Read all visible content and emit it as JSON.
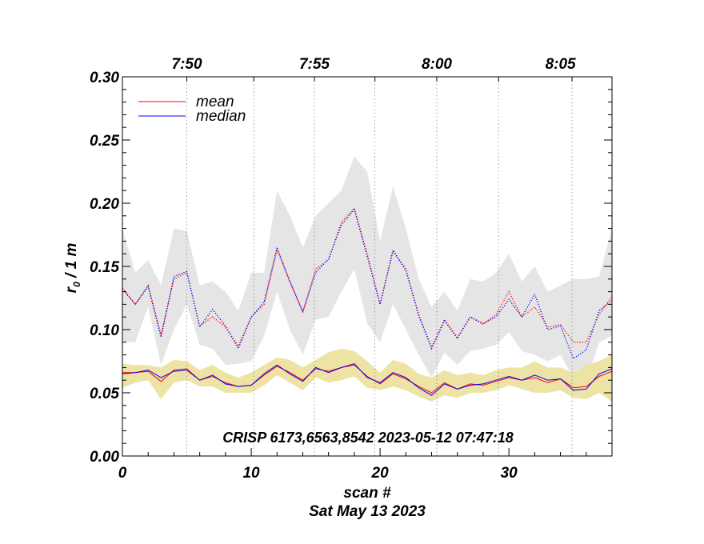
{
  "chart_data": {
    "type": "line",
    "title": "",
    "xlabel": "scan #",
    "date_label": "Sat May 13 2023",
    "ylabel_main": "r",
    "ylabel_sub": "0",
    "ylabel_rest": " / 1 m",
    "annotation": "CRISP 6173,6563,8542 2023-05-12 07:47:18",
    "xlim": [
      0,
      38
    ],
    "ylim": [
      0,
      0.3
    ],
    "x_ticks": [
      0,
      10,
      20,
      30
    ],
    "x_tick_labels": [
      "0",
      "10",
      "20",
      "30"
    ],
    "y_ticks": [
      0,
      0.05,
      0.1,
      0.15,
      0.2,
      0.25,
      0.3
    ],
    "y_tick_labels": [
      "0.00",
      "0.05",
      "0.10",
      "0.15",
      "0.20",
      "0.25",
      "0.30"
    ],
    "top_axis": {
      "positions": [
        5,
        10.2,
        14.9,
        19.6,
        24.4,
        29.2,
        34.9
      ],
      "labels": [
        {
          "x": 5,
          "text": "7:50"
        },
        {
          "x": 14.9,
          "text": "7:55"
        },
        {
          "x": 24.4,
          "text": "8:00"
        },
        {
          "x": 34.0,
          "text": "8:05"
        }
      ]
    },
    "legend": [
      {
        "name": "mean",
        "color": "#ff0000"
      },
      {
        "name": "median",
        "color": "#0000ff"
      }
    ],
    "x": [
      0,
      1,
      2,
      3,
      4,
      5,
      6,
      7,
      8,
      9,
      10,
      11,
      12,
      13,
      14,
      15,
      16,
      17,
      18,
      19,
      20,
      21,
      22,
      23,
      24,
      25,
      26,
      27,
      28,
      29,
      30,
      31,
      32,
      33,
      34,
      35,
      36,
      37,
      38
    ],
    "series": [
      {
        "name": "mean (upper group)",
        "color": "#ff0000",
        "style": "dotted",
        "values": [
          0.133,
          0.12,
          0.135,
          0.096,
          0.14,
          0.145,
          0.103,
          0.11,
          0.102,
          0.087,
          0.11,
          0.12,
          0.163,
          0.138,
          0.114,
          0.148,
          0.155,
          0.185,
          0.196,
          0.16,
          0.12,
          0.163,
          0.148,
          0.112,
          0.086,
          0.108,
          0.094,
          0.11,
          0.104,
          0.112,
          0.13,
          0.11,
          0.118,
          0.102,
          0.104,
          0.09,
          0.09,
          0.112,
          0.126
        ]
      },
      {
        "name": "median (upper group)",
        "color": "#0000ff",
        "style": "dotted",
        "values": [
          0.132,
          0.12,
          0.134,
          0.094,
          0.142,
          0.146,
          0.102,
          0.116,
          0.103,
          0.085,
          0.11,
          0.122,
          0.165,
          0.138,
          0.114,
          0.145,
          0.156,
          0.183,
          0.195,
          0.158,
          0.12,
          0.162,
          0.147,
          0.111,
          0.085,
          0.107,
          0.093,
          0.11,
          0.105,
          0.11,
          0.124,
          0.11,
          0.128,
          0.1,
          0.103,
          0.077,
          0.084,
          0.115,
          0.123
        ]
      },
      {
        "name": "mean (lower group)",
        "color": "#ff0000",
        "style": "solid",
        "values": [
          0.066,
          0.066,
          0.067,
          0.059,
          0.068,
          0.069,
          0.06,
          0.063,
          0.058,
          0.055,
          0.056,
          0.064,
          0.071,
          0.066,
          0.06,
          0.069,
          0.067,
          0.07,
          0.072,
          0.063,
          0.057,
          0.065,
          0.061,
          0.055,
          0.05,
          0.058,
          0.053,
          0.057,
          0.056,
          0.059,
          0.062,
          0.06,
          0.062,
          0.058,
          0.061,
          0.054,
          0.055,
          0.063,
          0.067
        ]
      },
      {
        "name": "median (lower group)",
        "color": "#0000ff",
        "style": "solid",
        "values": [
          0.065,
          0.066,
          0.068,
          0.062,
          0.067,
          0.068,
          0.06,
          0.064,
          0.057,
          0.055,
          0.056,
          0.065,
          0.072,
          0.065,
          0.059,
          0.07,
          0.066,
          0.07,
          0.073,
          0.062,
          0.058,
          0.066,
          0.062,
          0.054,
          0.048,
          0.057,
          0.053,
          0.056,
          0.057,
          0.06,
          0.063,
          0.06,
          0.064,
          0.06,
          0.061,
          0.052,
          0.053,
          0.065,
          0.069
        ]
      }
    ],
    "bands": [
      {
        "name": "upper spread",
        "color": "#e5e5e5",
        "upper": [
          0.18,
          0.145,
          0.155,
          0.135,
          0.18,
          0.178,
          0.135,
          0.138,
          0.13,
          0.115,
          0.145,
          0.145,
          0.21,
          0.19,
          0.165,
          0.19,
          0.2,
          0.21,
          0.237,
          0.225,
          0.17,
          0.213,
          0.18,
          0.14,
          0.118,
          0.13,
          0.115,
          0.14,
          0.138,
          0.145,
          0.16,
          0.138,
          0.15,
          0.13,
          0.135,
          0.14,
          0.14,
          0.142,
          0.18
        ],
        "lower": [
          0.09,
          0.09,
          0.118,
          0.072,
          0.1,
          0.12,
          0.088,
          0.085,
          0.072,
          0.073,
          0.075,
          0.095,
          0.13,
          0.1,
          0.08,
          0.108,
          0.11,
          0.13,
          0.148,
          0.105,
          0.09,
          0.12,
          0.1,
          0.08,
          0.062,
          0.082,
          0.072,
          0.083,
          0.085,
          0.088,
          0.098,
          0.083,
          0.08,
          0.075,
          0.08,
          0.062,
          0.06,
          0.09,
          0.095
        ]
      },
      {
        "name": "lower spread",
        "color": "#ede3a4",
        "upper": [
          0.073,
          0.072,
          0.072,
          0.07,
          0.076,
          0.075,
          0.068,
          0.072,
          0.066,
          0.062,
          0.066,
          0.072,
          0.078,
          0.076,
          0.07,
          0.076,
          0.082,
          0.085,
          0.083,
          0.075,
          0.066,
          0.076,
          0.073,
          0.065,
          0.062,
          0.068,
          0.064,
          0.066,
          0.064,
          0.068,
          0.07,
          0.07,
          0.075,
          0.07,
          0.07,
          0.066,
          0.072,
          0.075,
          0.08
        ]
      },
      {
        "name": "lower spread (min)",
        "color": "#ede3a4",
        "lower": [
          0.054,
          0.058,
          0.06,
          0.045,
          0.058,
          0.06,
          0.055,
          0.055,
          0.05,
          0.05,
          0.05,
          0.056,
          0.064,
          0.058,
          0.052,
          0.062,
          0.058,
          0.06,
          0.063,
          0.054,
          0.052,
          0.055,
          0.052,
          0.047,
          0.043,
          0.048,
          0.046,
          0.05,
          0.05,
          0.052,
          0.056,
          0.053,
          0.05,
          0.05,
          0.052,
          0.046,
          0.045,
          0.05,
          0.043
        ]
      }
    ]
  }
}
